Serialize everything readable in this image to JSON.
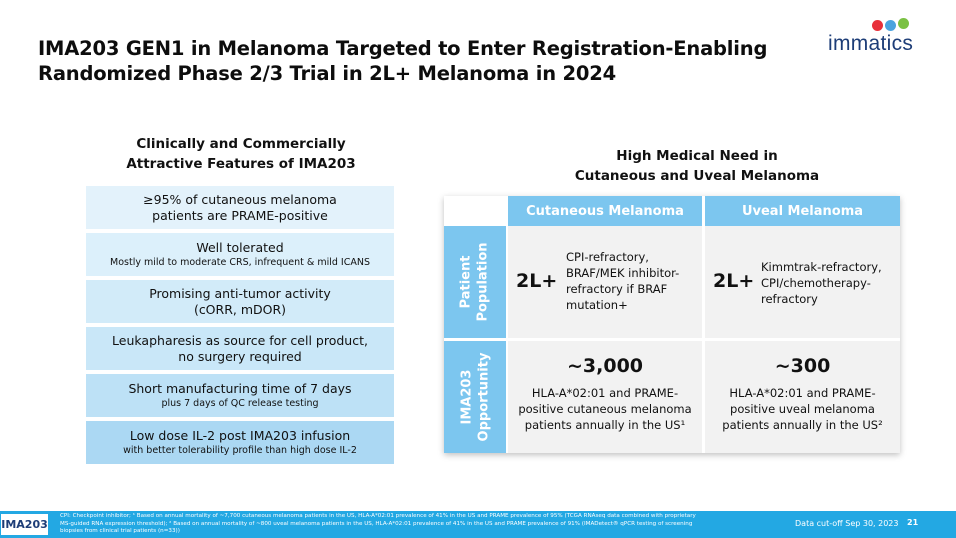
{
  "colors": {
    "accent": "#7cc6ef",
    "footer": "#23a8e3",
    "cell_bg": "#f2f2f2",
    "feature_shades": [
      "#e3f2fb",
      "#dcf0fb",
      "#d2ebf9",
      "#c9e7f8",
      "#bde1f6",
      "#abd8f3"
    ],
    "logo_dots": [
      "#e8303a",
      "#4aa3df",
      "#7ac143"
    ]
  },
  "slide": {
    "title_line1": "IMA203 GEN1 in Melanoma Targeted to Enter Registration-Enabling",
    "title_line2": "Randomized Phase 2/3 Trial in 2L+ Melanoma in 2024"
  },
  "logo": {
    "word": "immatics"
  },
  "left": {
    "heading_line1": "Clinically and Commercially",
    "heading_line2": "Attractive Features of IMA203",
    "features": [
      {
        "main": "≥95% of cutaneous melanoma",
        "main2": "patients are PRAME-positive"
      },
      {
        "main": "Well tolerated",
        "sub": "Mostly mild to moderate CRS, infrequent & mild ICANS"
      },
      {
        "main": "Promising anti-tumor activity",
        "main2": "(cORR, mDOR)"
      },
      {
        "main": "Leukapharesis as source for cell product,",
        "main2": "no surgery required"
      },
      {
        "main": "Short manufacturing time of 7 days",
        "sub": "plus 7 days of QC release testing"
      },
      {
        "main": "Low dose IL-2 post IMA203 infusion",
        "sub": "with better tolerability profile than high dose IL-2"
      }
    ]
  },
  "right": {
    "heading_line1": "High Medical Need in",
    "heading_line2": "Cutaneous and Uveal Melanoma",
    "col1": "Cutaneous Melanoma",
    "col2": "Uveal Melanoma",
    "row1_line1": "Patient",
    "row1_line2": "Population",
    "row2_line1": "IMA203",
    "row2_line2": "Opportunity",
    "line_2l": "2L+",
    "cut_pop": [
      "CPI-refractory,",
      "BRAF/MEK inhibitor-",
      "refractory if BRAF",
      "mutation+"
    ],
    "uv_pop": [
      "Kimmtrak-refractory,",
      "CPI/chemotherapy-",
      "refractory"
    ],
    "cut_num": "~3,000",
    "cut_opp": [
      "HLA-A*02:01 and PRAME-",
      "positive cutaneous melanoma",
      "patients annually in the US¹"
    ],
    "uv_num": "~300",
    "uv_opp": [
      "HLA-A*02:01 and PRAME-",
      "positive uveal melanoma",
      "patients annually in the US²"
    ]
  },
  "footer": {
    "badge": "IMA203",
    "note1": "CPI: Checkpoint inhibitor; ¹ Based on annual mortality of ~7,700 cutaneous melanoma patients in the US, HLA-A*02:01 prevalence of 41% in the US and PRAME prevalence of 95% (TCGA RNAseq data combined with proprietary",
    "note2": "MS-guided RNA expression threshold); ² Based on annual mortality of ~800 uveal melanoma patients in the US, HLA-A*02:01 prevalence of 41% in the US and PRAME prevalence of 91% (IMADetect® qPCR testing of screening",
    "note3": "biopsies from clinical trial patients (n=33))",
    "cutoff": "Data cut-off Sep 30, 2023",
    "page": "21"
  }
}
